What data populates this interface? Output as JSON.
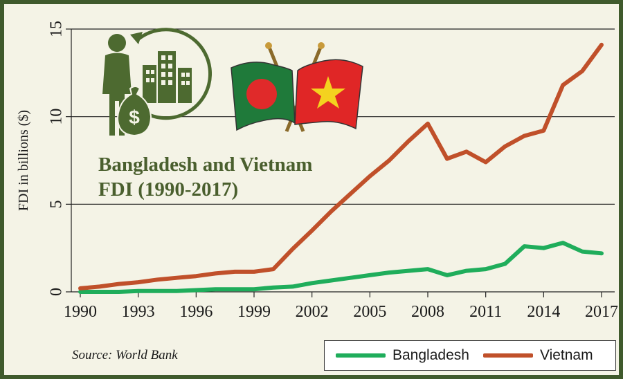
{
  "chart_data": {
    "type": "line",
    "title_lines": [
      "Bangladesh and Vietnam",
      "FDI (1990-2017)"
    ],
    "ylabel": "FDI in billions ($)",
    "xlabel": "",
    "source": "Source: World Bank",
    "xlim": [
      1990,
      2017
    ],
    "ylim": [
      0,
      15
    ],
    "x_ticks": [
      1990,
      1993,
      1996,
      1999,
      2002,
      2005,
      2008,
      2011,
      2014,
      2017
    ],
    "y_ticks": [
      0,
      5,
      10,
      15
    ],
    "grid": true,
    "legend_position": "bottom-right",
    "x": [
      1990,
      1991,
      1992,
      1993,
      1994,
      1995,
      1996,
      1997,
      1998,
      1999,
      2000,
      2001,
      2002,
      2003,
      2004,
      2005,
      2006,
      2007,
      2008,
      2009,
      2010,
      2011,
      2012,
      2013,
      2014,
      2015,
      2016,
      2017
    ],
    "series": [
      {
        "name": "Bangladesh",
        "color": "#1fad5b",
        "values": [
          0.0,
          0.0,
          0.0,
          0.05,
          0.05,
          0.05,
          0.1,
          0.15,
          0.15,
          0.15,
          0.25,
          0.3,
          0.5,
          0.65,
          0.8,
          0.95,
          1.1,
          1.2,
          1.3,
          0.95,
          1.2,
          1.3,
          1.6,
          2.6,
          2.5,
          2.8,
          2.3,
          2.2
        ]
      },
      {
        "name": "Vietnam",
        "color": "#c0502a",
        "values": [
          0.2,
          0.3,
          0.45,
          0.55,
          0.7,
          0.8,
          0.9,
          1.05,
          1.15,
          1.15,
          1.3,
          2.45,
          3.5,
          4.6,
          5.6,
          6.6,
          7.5,
          8.6,
          9.6,
          7.6,
          8.0,
          7.4,
          8.3,
          8.9,
          9.2,
          11.8,
          12.6,
          14.1
        ]
      }
    ]
  },
  "icons": {
    "fdi": "investor-money-bag-building-icon",
    "flags": "bangladesh-vietnam-crossed-flags-icon"
  },
  "colors": {
    "frame": "#3f5a2c",
    "background": "#f4f3e6",
    "title": "#4a5f2e"
  }
}
